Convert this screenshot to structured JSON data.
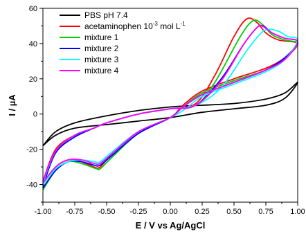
{
  "chart_data": {
    "type": "line",
    "title": "",
    "xlabel": "E / V vs Ag/AgCl",
    "ylabel": "I / µA",
    "xlim": [
      -1.0,
      1.0
    ],
    "ylim": [
      -50,
      60
    ],
    "x_ticks": [
      "-1.00",
      "-0.75",
      "-0.50",
      "-0.25",
      "0.00",
      "0.25",
      "0.50",
      "0.75",
      "1.00"
    ],
    "y_ticks": [
      "-40",
      "-20",
      "0",
      "20",
      "40",
      "60"
    ],
    "legend_position": "top-left",
    "legend": [
      {
        "label": "PBS pH 7.4"
      },
      {
        "label": "acetaminophen 10",
        "sup": "-3",
        "suffix": " mol L",
        "sup2": "-1"
      },
      {
        "label": "mixture 1"
      },
      {
        "label": "mixture 2"
      },
      {
        "label": "mixture 3"
      },
      {
        "label": "mixture 4"
      }
    ],
    "series": [
      {
        "name": "PBS pH 7.4",
        "color": "#000000",
        "x": [
          -1.0,
          -0.9,
          -0.75,
          -0.5,
          -0.25,
          0.0,
          0.1,
          0.25,
          0.5,
          0.75,
          0.9,
          1.0,
          0.9,
          0.75,
          0.5,
          0.25,
          0.0,
          -0.25,
          -0.5,
          -0.75,
          -0.9,
          -1.0
        ],
        "y": [
          -18,
          -10,
          -5,
          -1,
          2,
          4,
          4.5,
          5,
          6,
          8.5,
          12,
          18,
          9,
          5,
          3,
          1,
          -2,
          -4,
          -6,
          -8,
          -12,
          -18
        ]
      },
      {
        "name": "acetaminophen",
        "color": "#ff0000",
        "x": [
          -1.0,
          -0.9,
          -0.75,
          -0.6,
          -0.5,
          -0.25,
          0.0,
          0.2,
          0.35,
          0.5,
          0.6,
          0.68,
          0.75,
          0.85,
          1.0,
          0.9,
          0.75,
          0.5,
          0.25,
          0.1,
          0.0,
          -0.25,
          -0.45,
          -0.55,
          -0.6,
          -0.7,
          -0.8,
          -0.9,
          -1.0
        ],
        "y": [
          -38,
          -20,
          -12,
          -8,
          -5,
          0,
          3,
          6,
          22,
          44,
          54,
          52,
          46,
          42,
          40,
          32,
          26,
          20,
          13,
          5,
          -2,
          -10,
          -22,
          -30,
          -30,
          -27,
          -26,
          -30,
          -40
        ]
      },
      {
        "name": "mixture 1",
        "color": "#00cc00",
        "x": [
          -1.0,
          -0.9,
          -0.75,
          -0.6,
          -0.5,
          -0.25,
          0.0,
          0.2,
          0.35,
          0.55,
          0.65,
          0.72,
          0.8,
          0.9,
          1.0,
          0.9,
          0.75,
          0.5,
          0.25,
          0.1,
          0.0,
          -0.25,
          -0.45,
          -0.55,
          -0.58,
          -0.7,
          -0.8,
          -0.9,
          -1.0
        ],
        "y": [
          -40,
          -22,
          -13,
          -8,
          -5,
          0,
          3,
          5,
          18,
          44,
          53,
          51,
          45,
          42,
          40,
          32,
          25,
          19,
          12,
          4,
          -2,
          -11,
          -24,
          -31,
          -31,
          -28,
          -27,
          -32,
          -43
        ]
      },
      {
        "name": "mixture 2",
        "color": "#0000ff",
        "x": [
          -1.0,
          -0.9,
          -0.75,
          -0.6,
          -0.5,
          -0.25,
          0.0,
          0.2,
          0.4,
          0.58,
          0.68,
          0.73,
          0.8,
          0.9,
          1.0,
          0.9,
          0.75,
          0.5,
          0.25,
          0.1,
          0.0,
          -0.25,
          -0.45,
          -0.55,
          -0.6,
          -0.7,
          -0.8,
          -0.9,
          -1.0
        ],
        "y": [
          -41,
          -22,
          -13,
          -8,
          -5,
          0,
          3,
          5,
          20,
          40,
          49,
          50,
          46,
          43,
          41,
          32,
          25,
          18,
          11,
          4,
          -2,
          -11,
          -23,
          -29,
          -29,
          -27,
          -27,
          -32,
          -42
        ]
      },
      {
        "name": "mixture 3",
        "color": "#00ffff",
        "x": [
          -1.0,
          -0.9,
          -0.75,
          -0.6,
          -0.5,
          -0.25,
          0.0,
          0.2,
          0.4,
          0.6,
          0.7,
          0.76,
          0.85,
          0.92,
          1.0,
          0.9,
          0.75,
          0.5,
          0.25,
          0.12,
          0.0,
          -0.25,
          -0.45,
          -0.55,
          -0.6,
          -0.7,
          -0.8,
          -0.9,
          -1.0
        ],
        "y": [
          -39,
          -21,
          -12,
          -8,
          -5,
          0,
          3,
          5,
          15,
          36,
          45,
          48,
          47,
          44,
          42,
          31,
          24,
          17,
          10,
          3,
          -2,
          -10,
          -21,
          -27,
          -27,
          -26,
          -27,
          -31,
          -40
        ]
      },
      {
        "name": "mixture 4",
        "color": "#ff00ff",
        "x": [
          -1.0,
          -0.9,
          -0.75,
          -0.6,
          -0.5,
          -0.25,
          0.0,
          0.2,
          0.4,
          0.58,
          0.68,
          0.72,
          0.8,
          0.9,
          1.0,
          0.9,
          0.75,
          0.5,
          0.25,
          0.1,
          0.0,
          -0.25,
          -0.45,
          -0.55,
          -0.6,
          -0.7,
          -0.8,
          -0.9,
          -1.0
        ],
        "y": [
          -38,
          -21,
          -12,
          -8,
          -5,
          0,
          3,
          5,
          19,
          40,
          49,
          50,
          46,
          43,
          41,
          31,
          25,
          18,
          11,
          4,
          -2,
          -10,
          -22,
          -28,
          -28,
          -26,
          -26,
          -30,
          -39
        ]
      }
    ]
  }
}
